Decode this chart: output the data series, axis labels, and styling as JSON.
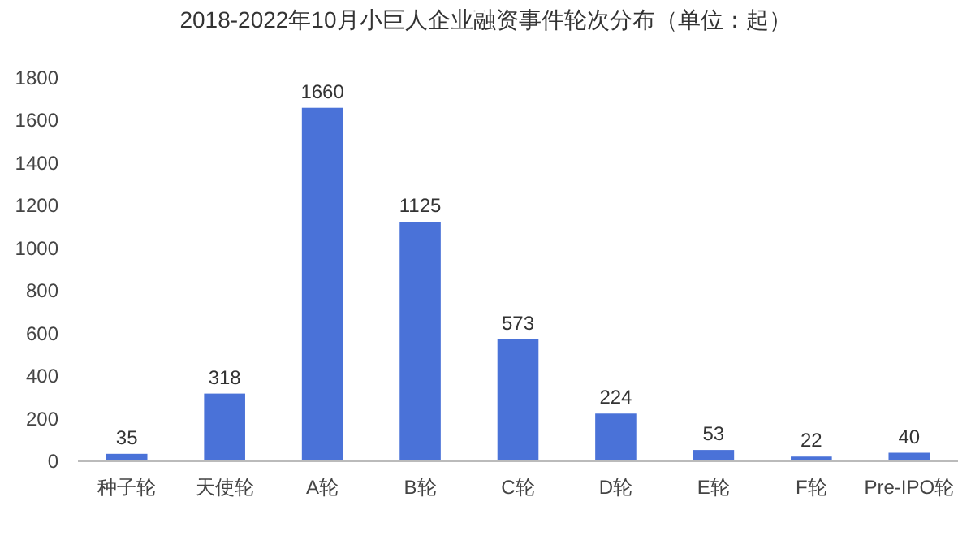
{
  "chart_data": {
    "type": "bar",
    "title": "2018-2022年10月小巨人企业融资事件轮次分布（单位：起）",
    "categories": [
      "种子轮",
      "天使轮",
      "A轮",
      "B轮",
      "C轮",
      "D轮",
      "E轮",
      "F轮",
      "Pre-IPO轮"
    ],
    "values": [
      35,
      318,
      1660,
      1125,
      573,
      224,
      53,
      22,
      40
    ],
    "color": "#4a72d8",
    "ylim": [
      0,
      1800
    ],
    "yticks": [
      0,
      200,
      400,
      600,
      800,
      1000,
      1200,
      1400,
      1600,
      1800
    ],
    "grid": false,
    "data_labels": true
  }
}
